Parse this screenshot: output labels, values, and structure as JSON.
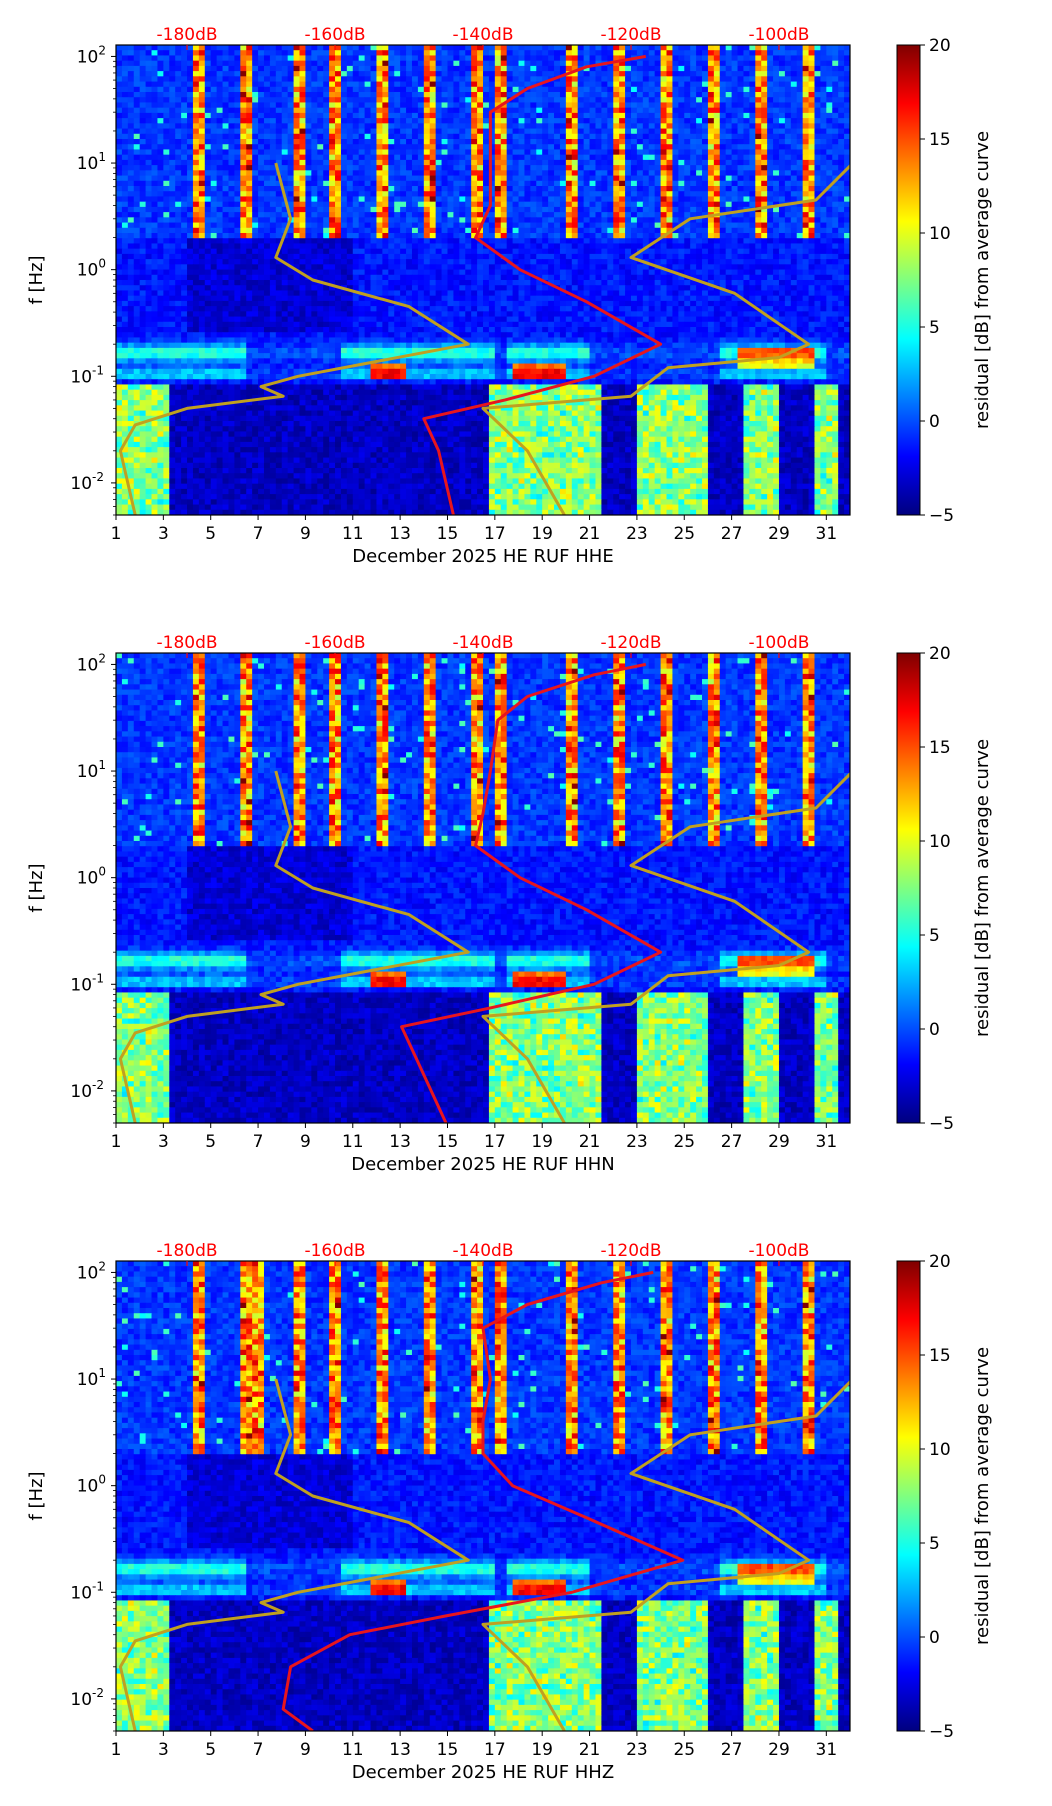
{
  "chart_data": [
    {
      "type": "heatmap",
      "title": "",
      "xlabel": "December 2025 HE RUF  HHE",
      "ylabel": "f [Hz]",
      "colorbar_label": "residual [dB] from average curve",
      "x_ticks": [
        "1",
        "3",
        "5",
        "7",
        "9",
        "11",
        "13",
        "15",
        "17",
        "19",
        "21",
        "23",
        "25",
        "27",
        "29",
        "31"
      ],
      "y_ticks": [
        "10",
        "10",
        "10",
        "10",
        "10"
      ],
      "y_tick_exponents": [
        "2",
        "1",
        "0",
        "-1",
        "-2"
      ],
      "top_ticks": [
        "-180dB",
        "-160dB",
        "-140dB",
        "-120dB",
        "-100dB"
      ],
      "colorbar_ticks": [
        "20",
        "15",
        "10",
        "5",
        "0",
        "−5"
      ],
      "clim": [
        -5,
        20
      ],
      "xlim": [
        1,
        32
      ],
      "ylim_hz": [
        0.005,
        128
      ],
      "colormap": "jet",
      "series": [
        {
          "name": "mean PSD (red, top axis dB)",
          "color": "#e8151d",
          "points": [
            [
              100,
              -118
            ],
            [
              80,
              -126
            ],
            [
              50,
              -134
            ],
            [
              30,
              -139
            ],
            [
              10,
              -139
            ],
            [
              4,
              -139
            ],
            [
              2,
              -141
            ],
            [
              1,
              -135
            ],
            [
              0.5,
              -126
            ],
            [
              0.2,
              -116
            ],
            [
              0.1,
              -125
            ],
            [
              0.06,
              -137
            ],
            [
              0.04,
              -148
            ],
            [
              0.02,
              -146
            ],
            [
              0.005,
              -144
            ]
          ]
        },
        {
          "name": "low noise model (olive, top axis dB)",
          "color": "#c0a020",
          "points": [
            [
              10,
              -168
            ],
            [
              3,
              -166
            ],
            [
              1.3,
              -168
            ],
            [
              0.8,
              -163
            ],
            [
              0.45,
              -150
            ],
            [
              0.2,
              -142
            ],
            [
              0.1,
              -165
            ],
            [
              0.08,
              -170
            ],
            [
              0.065,
              -167
            ],
            [
              0.05,
              -180
            ],
            [
              0.035,
              -187
            ],
            [
              0.02,
              -189
            ],
            [
              0.01,
              -188
            ],
            [
              0.005,
              -187
            ]
          ]
        },
        {
          "name": "high noise model (olive, top axis dB)",
          "color": "#c0a020",
          "points": [
            [
              10,
              -90
            ],
            [
              4.5,
              -95
            ],
            [
              3,
              -112
            ],
            [
              1.3,
              -120
            ],
            [
              0.6,
              -106
            ],
            [
              0.2,
              -96
            ],
            [
              0.15,
              -100
            ],
            [
              0.12,
              -115
            ],
            [
              0.065,
              -120
            ],
            [
              0.05,
              -140
            ],
            [
              0.02,
              -134
            ],
            [
              0.005,
              -129
            ]
          ]
        }
      ],
      "bright_days": [
        4.5,
        6.5,
        8.7,
        10.3,
        12.2,
        14.2,
        16.2,
        17.2,
        20.3,
        22.2,
        24.2,
        26.3,
        28.2,
        30.2
      ]
    },
    {
      "type": "heatmap",
      "title": "",
      "xlabel": "December 2025 HE RUF  HHN",
      "ylabel": "f [Hz]",
      "colorbar_label": "residual [dB] from average curve",
      "x_ticks": [
        "1",
        "3",
        "5",
        "7",
        "9",
        "11",
        "13",
        "15",
        "17",
        "19",
        "21",
        "23",
        "25",
        "27",
        "29",
        "31"
      ],
      "y_ticks": [
        "10",
        "10",
        "10",
        "10",
        "10"
      ],
      "y_tick_exponents": [
        "2",
        "1",
        "0",
        "-1",
        "-2"
      ],
      "top_ticks": [
        "-180dB",
        "-160dB",
        "-140dB",
        "-120dB",
        "-100dB"
      ],
      "colorbar_ticks": [
        "20",
        "15",
        "10",
        "5",
        "0",
        "−5"
      ],
      "clim": [
        -5,
        20
      ],
      "xlim": [
        1,
        32
      ],
      "ylim_hz": [
        0.005,
        128
      ],
      "colormap": "jet",
      "series": [
        {
          "name": "mean PSD (red, top axis dB)",
          "color": "#e8151d",
          "points": [
            [
              100,
              -118
            ],
            [
              80,
              -125
            ],
            [
              50,
              -134
            ],
            [
              30,
              -138
            ],
            [
              10,
              -139
            ],
            [
              4,
              -140
            ],
            [
              2,
              -141
            ],
            [
              1,
              -135
            ],
            [
              0.5,
              -126
            ],
            [
              0.2,
              -116
            ],
            [
              0.1,
              -125
            ],
            [
              0.06,
              -139
            ],
            [
              0.04,
              -151
            ],
            [
              0.02,
              -149
            ],
            [
              0.005,
              -145
            ]
          ]
        },
        {
          "name": "low noise model (olive, top axis dB)",
          "color": "#c0a020",
          "points": [
            [
              10,
              -168
            ],
            [
              3,
              -166
            ],
            [
              1.3,
              -168
            ],
            [
              0.8,
              -163
            ],
            [
              0.45,
              -150
            ],
            [
              0.2,
              -142
            ],
            [
              0.1,
              -165
            ],
            [
              0.08,
              -170
            ],
            [
              0.065,
              -167
            ],
            [
              0.05,
              -180
            ],
            [
              0.035,
              -187
            ],
            [
              0.02,
              -189
            ],
            [
              0.01,
              -188
            ],
            [
              0.005,
              -187
            ]
          ]
        },
        {
          "name": "high noise model (olive, top axis dB)",
          "color": "#c0a020",
          "points": [
            [
              10,
              -90
            ],
            [
              4.5,
              -95
            ],
            [
              3,
              -112
            ],
            [
              1.3,
              -120
            ],
            [
              0.6,
              -106
            ],
            [
              0.2,
              -96
            ],
            [
              0.15,
              -100
            ],
            [
              0.12,
              -115
            ],
            [
              0.065,
              -120
            ],
            [
              0.05,
              -140
            ],
            [
              0.02,
              -134
            ],
            [
              0.005,
              -129
            ]
          ]
        }
      ],
      "bright_days": [
        4.5,
        6.5,
        8.7,
        10.3,
        12.2,
        14.2,
        16.2,
        17.2,
        20.3,
        22.2,
        24.2,
        26.3,
        28.2,
        30.2
      ]
    },
    {
      "type": "heatmap",
      "title": "",
      "xlabel": "December 2025 HE RUF  HHZ",
      "ylabel": "f [Hz]",
      "colorbar_label": "residual [dB] from average curve",
      "x_ticks": [
        "1",
        "3",
        "5",
        "7",
        "9",
        "11",
        "13",
        "15",
        "17",
        "19",
        "21",
        "23",
        "25",
        "27",
        "29",
        "31"
      ],
      "y_ticks": [
        "10",
        "10",
        "10",
        "10",
        "10"
      ],
      "y_tick_exponents": [
        "2",
        "1",
        "0",
        "-1",
        "-2"
      ],
      "top_ticks": [
        "-180dB",
        "-160dB",
        "-140dB",
        "-120dB",
        "-100dB"
      ],
      "colorbar_ticks": [
        "20",
        "15",
        "10",
        "5",
        "0",
        "−5"
      ],
      "clim": [
        -5,
        20
      ],
      "xlim": [
        1,
        32
      ],
      "ylim_hz": [
        0.005,
        128
      ],
      "colormap": "jet",
      "series": [
        {
          "name": "mean PSD (red, top axis dB)",
          "color": "#e8151d",
          "points": [
            [
              100,
              -117
            ],
            [
              80,
              -124
            ],
            [
              50,
              -134
            ],
            [
              30,
              -140
            ],
            [
              10,
              -139
            ],
            [
              4,
              -140
            ],
            [
              2,
              -140
            ],
            [
              1,
              -136
            ],
            [
              0.5,
              -126
            ],
            [
              0.2,
              -113
            ],
            [
              0.1,
              -128
            ],
            [
              0.06,
              -145
            ],
            [
              0.04,
              -158
            ],
            [
              0.02,
              -166
            ],
            [
              0.008,
              -167
            ],
            [
              0.005,
              -163
            ]
          ]
        },
        {
          "name": "low noise model (olive, top axis dB)",
          "color": "#c0a020",
          "points": [
            [
              10,
              -168
            ],
            [
              3,
              -166
            ],
            [
              1.3,
              -168
            ],
            [
              0.8,
              -163
            ],
            [
              0.45,
              -150
            ],
            [
              0.2,
              -142
            ],
            [
              0.1,
              -165
            ],
            [
              0.08,
              -170
            ],
            [
              0.065,
              -167
            ],
            [
              0.05,
              -180
            ],
            [
              0.035,
              -187
            ],
            [
              0.02,
              -189
            ],
            [
              0.01,
              -188
            ],
            [
              0.005,
              -187
            ]
          ]
        },
        {
          "name": "high noise model (olive, top axis dB)",
          "color": "#c0a020",
          "points": [
            [
              10,
              -90
            ],
            [
              4.5,
              -95
            ],
            [
              3,
              -112
            ],
            [
              1.3,
              -120
            ],
            [
              0.6,
              -106
            ],
            [
              0.2,
              -96
            ],
            [
              0.15,
              -100
            ],
            [
              0.12,
              -115
            ],
            [
              0.065,
              -120
            ],
            [
              0.05,
              -140
            ],
            [
              0.02,
              -134
            ],
            [
              0.005,
              -129
            ]
          ]
        }
      ],
      "bright_days": [
        4.5,
        6.5,
        7.0,
        8.7,
        10.3,
        12.2,
        14.2,
        16.2,
        17.2,
        20.3,
        22.2,
        24.2,
        26.3,
        28.2,
        30.2
      ]
    }
  ]
}
